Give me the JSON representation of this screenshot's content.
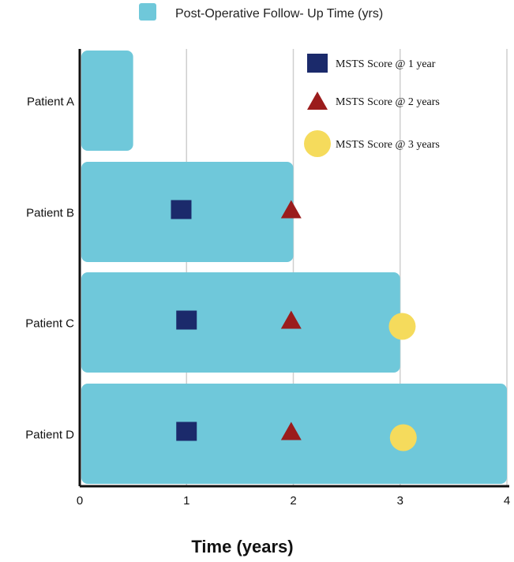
{
  "chart_data": {
    "type": "bar",
    "orientation": "horizontal",
    "title": "",
    "xlabel": "Time (years)",
    "ylabel": "",
    "xlim": [
      0,
      4
    ],
    "x_ticks": [
      "0",
      "1",
      "2",
      "3",
      "4"
    ],
    "grid": "vertical",
    "categories": [
      "Patient A",
      "Patient B",
      "Patient C",
      "Patient D"
    ],
    "series": [
      {
        "name": "Post-Operative Follow- Up Time (yrs)",
        "color": "#6fc8da",
        "values": [
          0.5,
          2.0,
          3.0,
          4.0
        ]
      }
    ],
    "markers": [
      {
        "name": "MSTS Score @ 1 year",
        "shape": "square",
        "color": "#1b2a6b",
        "points": [
          {
            "category": "Patient B",
            "x": 0.95
          },
          {
            "category": "Patient C",
            "x": 1.0
          },
          {
            "category": "Patient D",
            "x": 1.0
          }
        ]
      },
      {
        "name": "MSTS Score @ 2 years",
        "shape": "triangle",
        "color": "#9b1c1c",
        "points": [
          {
            "category": "Patient B",
            "x": 1.98
          },
          {
            "category": "Patient C",
            "x": 1.98
          },
          {
            "category": "Patient D",
            "x": 1.98
          }
        ]
      },
      {
        "name": "MSTS Score @ 3 years",
        "shape": "circle",
        "color": "#f5db5c",
        "points": [
          {
            "category": "Patient C",
            "x": 3.02
          },
          {
            "category": "Patient D",
            "x": 3.03
          }
        ]
      }
    ],
    "legend_top": "top-center",
    "legend_markers": "top-right"
  }
}
